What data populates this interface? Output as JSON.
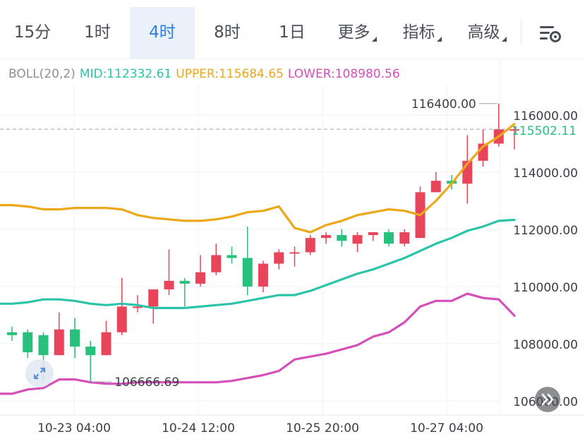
{
  "tabs": [
    {
      "label": "15分",
      "active": false,
      "dropdown": false
    },
    {
      "label": "1时",
      "active": false,
      "dropdown": false
    },
    {
      "label": "4时",
      "active": true,
      "dropdown": false
    },
    {
      "label": "8时",
      "active": false,
      "dropdown": false
    },
    {
      "label": "1日",
      "active": false,
      "dropdown": false
    },
    {
      "label": "更多",
      "active": false,
      "dropdown": true
    },
    {
      "label": "指标",
      "active": false,
      "dropdown": true
    },
    {
      "label": "高级",
      "active": false,
      "dropdown": true
    }
  ],
  "settings_icon": "chart-settings-icon",
  "indicator": {
    "name": "BOLL(20,2)",
    "mid": "MID:112332.61",
    "upper": "UPPER:115684.65",
    "lower": "LOWER:108980.56"
  },
  "colors": {
    "up": "#e8455b",
    "down": "#27c17c",
    "mid": "#2cc4a8",
    "upper": "#eda81a",
    "lower": "#d64fb8",
    "accent": "#2f7ee6",
    "current_price": "#27c17c"
  },
  "chart_data": {
    "type": "candlestick",
    "y_axis": {
      "ticks": [
        116000,
        114000,
        112000,
        110000,
        108000,
        106000
      ],
      "tick_labels": [
        "116000.00",
        "114000.00",
        "112000.00",
        "110000.00",
        "108000.00",
        "106000.00"
      ]
    },
    "x_axis": {
      "tick_labels": [
        "10-23 04:00",
        "10-24 12:00",
        "10-25 20:00",
        "10-27 04:00"
      ]
    },
    "grid": true,
    "candles": [
      {
        "o": 108400,
        "h": 108600,
        "l": 108100,
        "c": 108300
      },
      {
        "o": 108400,
        "h": 108500,
        "l": 107500,
        "c": 107700
      },
      {
        "o": 108300,
        "h": 108400,
        "l": 106700,
        "c": 107600
      },
      {
        "o": 107600,
        "h": 109100,
        "l": 107600,
        "c": 108500
      },
      {
        "o": 108500,
        "h": 108900,
        "l": 107500,
        "c": 107900
      },
      {
        "o": 107900,
        "h": 108100,
        "l": 106666.69,
        "c": 107600
      },
      {
        "o": 107600,
        "h": 108800,
        "l": 107600,
        "c": 108400
      },
      {
        "o": 108400,
        "h": 110300,
        "l": 108300,
        "c": 109300
      },
      {
        "o": 109300,
        "h": 109700,
        "l": 109100,
        "c": 109300
      },
      {
        "o": 109300,
        "h": 109900,
        "l": 108700,
        "c": 109900
      },
      {
        "o": 109900,
        "h": 111300,
        "l": 109700,
        "c": 110200
      },
      {
        "o": 110200,
        "h": 110300,
        "l": 109300,
        "c": 110100
      },
      {
        "o": 110100,
        "h": 111100,
        "l": 110000,
        "c": 110500
      },
      {
        "o": 110500,
        "h": 111500,
        "l": 110400,
        "c": 111100
      },
      {
        "o": 111100,
        "h": 111400,
        "l": 110800,
        "c": 111000
      },
      {
        "o": 111000,
        "h": 112100,
        "l": 109700,
        "c": 110000
      },
      {
        "o": 110000,
        "h": 110900,
        "l": 109800,
        "c": 110800
      },
      {
        "o": 110800,
        "h": 111300,
        "l": 110600,
        "c": 111200
      },
      {
        "o": 111200,
        "h": 111400,
        "l": 110700,
        "c": 111200
      },
      {
        "o": 111200,
        "h": 111800,
        "l": 111100,
        "c": 111700
      },
      {
        "o": 111700,
        "h": 111900,
        "l": 111500,
        "c": 111800
      },
      {
        "o": 111800,
        "h": 112000,
        "l": 111400,
        "c": 111600
      },
      {
        "o": 111500,
        "h": 111900,
        "l": 111200,
        "c": 111800
      },
      {
        "o": 111800,
        "h": 111900,
        "l": 111600,
        "c": 111900
      },
      {
        "o": 111900,
        "h": 112000,
        "l": 111400,
        "c": 111500
      },
      {
        "o": 111500,
        "h": 112000,
        "l": 111400,
        "c": 111900
      },
      {
        "o": 111700,
        "h": 113500,
        "l": 111700,
        "c": 113300
      },
      {
        "o": 113300,
        "h": 114000,
        "l": 113300,
        "c": 113700
      },
      {
        "o": 113700,
        "h": 113900,
        "l": 113400,
        "c": 113600
      },
      {
        "o": 113600,
        "h": 115300,
        "l": 112900,
        "c": 114400
      },
      {
        "o": 114400,
        "h": 115500,
        "l": 114200,
        "c": 115000
      },
      {
        "o": 115000,
        "h": 116400,
        "l": 114900,
        "c": 115500
      },
      {
        "o": 115500,
        "h": 115600,
        "l": 114800,
        "c": 115502.11
      }
    ],
    "boll_mid": [
      109400,
      109450,
      109550,
      109550,
      109500,
      109400,
      109350,
      109400,
      109350,
      109250,
      109250,
      109250,
      109300,
      109350,
      109400,
      109500,
      109600,
      109700,
      109700,
      109850,
      110050,
      110250,
      110450,
      110600,
      110800,
      111000,
      111250,
      111500,
      111700,
      111950,
      112100,
      112300,
      112332.61
    ],
    "boll_upper": [
      112850,
      112800,
      112700,
      112700,
      112750,
      112750,
      112750,
      112700,
      112500,
      112400,
      112350,
      112300,
      112300,
      112350,
      112450,
      112600,
      112650,
      112800,
      112050,
      111900,
      112150,
      112300,
      112500,
      112600,
      112700,
      112650,
      112500,
      113000,
      113600,
      114300,
      114900,
      115250,
      115684.65
    ],
    "boll_lower": [
      106250,
      106400,
      106450,
      106750,
      106750,
      106650,
      106600,
      106600,
      106650,
      106650,
      106650,
      106650,
      106650,
      106650,
      106700,
      106800,
      106900,
      107050,
      107450,
      107550,
      107650,
      107800,
      107950,
      108250,
      108400,
      108750,
      109300,
      109500,
      109500,
      109750,
      109600,
      109550,
      108980.56
    ],
    "markers": {
      "high": {
        "price": 116400,
        "label": "116400.00"
      },
      "low": {
        "price": 106666.69,
        "label": "106666.69"
      }
    },
    "current_price": {
      "value": 115502.11,
      "label": "115502.11"
    }
  }
}
